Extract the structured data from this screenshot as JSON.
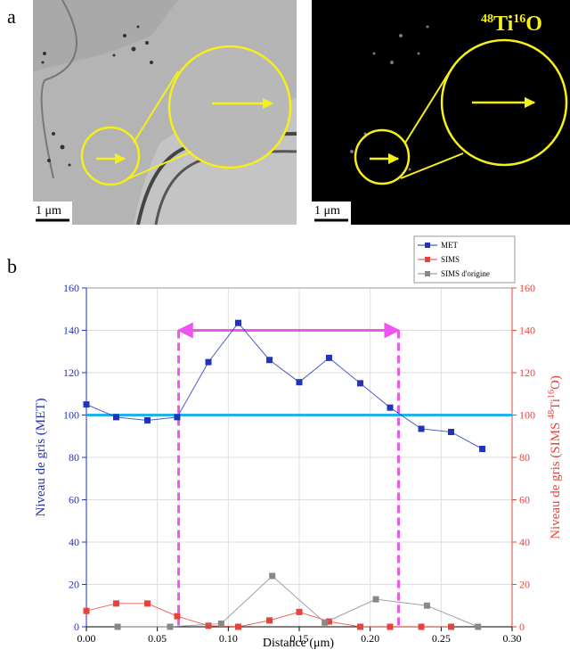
{
  "figure": {
    "panel_labels": [
      "a",
      "b"
    ],
    "images": [
      {
        "scale_bar": "1 μm"
      },
      {
        "scale_bar": "1 μm",
        "label": [
          "48",
          "Ti",
          "16",
          "O"
        ]
      }
    ]
  },
  "chart_data": {
    "type": "line",
    "xlabel": "Distance (μm)",
    "ylabel": "Niveau de gris (MET)",
    "y2label": [
      "Niveau de gris (SIMS ",
      "48",
      "Ti",
      "16",
      "O)"
    ],
    "xlim": [
      0,
      0.3
    ],
    "xticks": [
      {
        "value": 0,
        "label": "0.00"
      },
      {
        "value": 0.05,
        "label": "0.05"
      },
      {
        "value": 0.1,
        "label": "0.10"
      },
      {
        "value": 0.15,
        "label": "0.15"
      },
      {
        "value": 0.2,
        "label": "0.20"
      },
      {
        "value": 0.25,
        "label": "0.25"
      },
      {
        "value": 0.3,
        "label": "0.30"
      }
    ],
    "ylim": [
      0,
      160
    ],
    "yticks": [
      0,
      20,
      40,
      60,
      80,
      100,
      120,
      140,
      160
    ],
    "y2lim": [
      0,
      160
    ],
    "y2ticks": [
      0,
      20,
      40,
      60,
      80,
      100,
      120,
      140,
      160
    ],
    "grid": true,
    "legend": "top-right",
    "reference_line": {
      "value": 100,
      "color": "#22b4e8"
    },
    "span": {
      "x": [
        0.065,
        0.22
      ],
      "y": 140,
      "color": "#ee55ee"
    },
    "series": [
      {
        "name": "MET",
        "color": "#2233bb",
        "x": [
          0,
          0.021,
          0.043,
          0.064,
          0.086,
          0.107,
          0.129,
          0.15,
          0.171,
          0.193,
          0.214,
          0.236,
          0.257,
          0.279
        ],
        "values": [
          105,
          99,
          97.5,
          99,
          125,
          143.5,
          126,
          115.5,
          127,
          115,
          103.5,
          93.5,
          92,
          84
        ]
      },
      {
        "name": "SIMS",
        "color": "#e8433a",
        "axis": "y2",
        "x": [
          0,
          0.021,
          0.043,
          0.064,
          0.086,
          0.107,
          0.129,
          0.15,
          0.171,
          0.193,
          0.214,
          0.236,
          0.257
        ],
        "values": [
          7.5,
          11,
          11,
          5,
          0.5,
          0,
          3,
          7,
          2.5,
          0,
          0,
          0,
          0
        ]
      },
      {
        "name": "SIMS d'origine",
        "color": "#888888",
        "axis": "y2",
        "x": [
          0.022,
          0.059,
          0.095,
          0.131,
          0.168,
          0.204,
          0.24,
          0.276
        ],
        "values": [
          0,
          0,
          1.5,
          24,
          2,
          13,
          10,
          0
        ]
      }
    ]
  }
}
